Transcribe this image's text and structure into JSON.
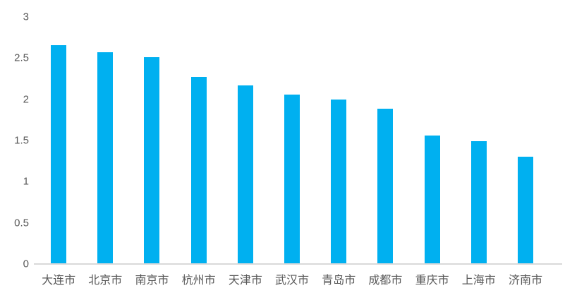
{
  "chart_data": {
    "type": "bar",
    "title": "",
    "xlabel": "",
    "ylabel": "",
    "categories": [
      "大连市",
      "北京市",
      "南京市",
      "杭州市",
      "天津市",
      "武汉市",
      "青岛市",
      "成都市",
      "重庆市",
      "上海市",
      "济南市"
    ],
    "values": [
      2.66,
      2.57,
      2.51,
      2.27,
      2.17,
      2.06,
      2.0,
      1.89,
      1.56,
      1.49,
      1.3
    ],
    "ylim": [
      0,
      3
    ],
    "ytick_labels": [
      "0",
      "0.5",
      "1",
      "1.5",
      "2",
      "2.5",
      "3"
    ],
    "grid": false,
    "legend": "none",
    "colors": {
      "bar": "#00B0F0",
      "axis_line": "#D9D9D9",
      "tick_text": "#595959",
      "background": "#FFFFFF"
    }
  }
}
